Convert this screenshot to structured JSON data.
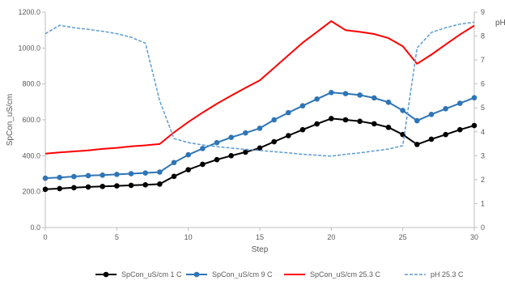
{
  "chart_data": {
    "type": "line",
    "title": "",
    "xlabel": "Step",
    "ylabel": "SpCon_uS/cm",
    "y2label": "pH",
    "xlim": [
      0,
      30
    ],
    "ylim": [
      0,
      1200
    ],
    "y2lim": [
      0,
      9
    ],
    "xticks": [
      0,
      5,
      10,
      15,
      20,
      25,
      30
    ],
    "yticks": [
      "0.0",
      "200.0",
      "400.0",
      "600.0",
      "800.0",
      "1000.0",
      "1200.0"
    ],
    "y2ticks": [
      "0",
      "1",
      "2",
      "3",
      "4",
      "5",
      "6",
      "7",
      "8",
      "9"
    ],
    "grid": false,
    "legend_position": "bottom",
    "x": [
      0,
      1,
      2,
      3,
      4,
      5,
      6,
      7,
      8,
      9,
      10,
      11,
      12,
      13,
      14,
      15,
      16,
      17,
      18,
      19,
      20,
      21,
      22,
      23,
      24,
      25,
      26,
      27,
      28,
      29,
      30
    ],
    "series": [
      {
        "name": "SpCon_uS/cm 1 C",
        "axis": "left",
        "style": "line-marker",
        "color": "#000000",
        "values": [
          213,
          217,
          222,
          226,
          229,
          232,
          235,
          238,
          242,
          285,
          322,
          352,
          378,
          400,
          420,
          443,
          478,
          512,
          545,
          577,
          607,
          600,
          592,
          578,
          558,
          518,
          463,
          492,
          518,
          545,
          568
        ]
      },
      {
        "name": "SpCon_uS/cm 9 C",
        "axis": "left",
        "style": "line-marker",
        "color": "#2e75b6",
        "values": [
          275,
          279,
          284,
          289,
          292,
          296,
          300,
          304,
          309,
          362,
          405,
          440,
          473,
          502,
          527,
          553,
          600,
          640,
          678,
          716,
          752,
          746,
          738,
          722,
          698,
          652,
          595,
          630,
          662,
          692,
          723
        ]
      },
      {
        "name": "SpCon_uS/cm 25.3 C",
        "axis": "left",
        "style": "solid",
        "color": "#ff0000",
        "values": [
          412,
          418,
          424,
          430,
          438,
          444,
          452,
          458,
          465,
          530,
          588,
          640,
          690,
          735,
          778,
          820,
          890,
          960,
          1030,
          1090,
          1150,
          1100,
          1090,
          1078,
          1055,
          1010,
          912,
          963,
          1020,
          1075,
          1125
        ]
      },
      {
        "name": "pH 25.3 C",
        "axis": "right",
        "style": "dashed",
        "color": "#5b9bd5",
        "values": [
          8.1,
          8.45,
          8.35,
          8.28,
          8.2,
          8.1,
          7.95,
          7.7,
          5.3,
          3.72,
          3.55,
          3.45,
          3.38,
          3.32,
          3.27,
          3.22,
          3.17,
          3.12,
          3.06,
          3.02,
          2.98,
          3.06,
          3.12,
          3.2,
          3.28,
          3.42,
          7.5,
          8.15,
          8.35,
          8.5,
          8.58
        ]
      }
    ]
  }
}
